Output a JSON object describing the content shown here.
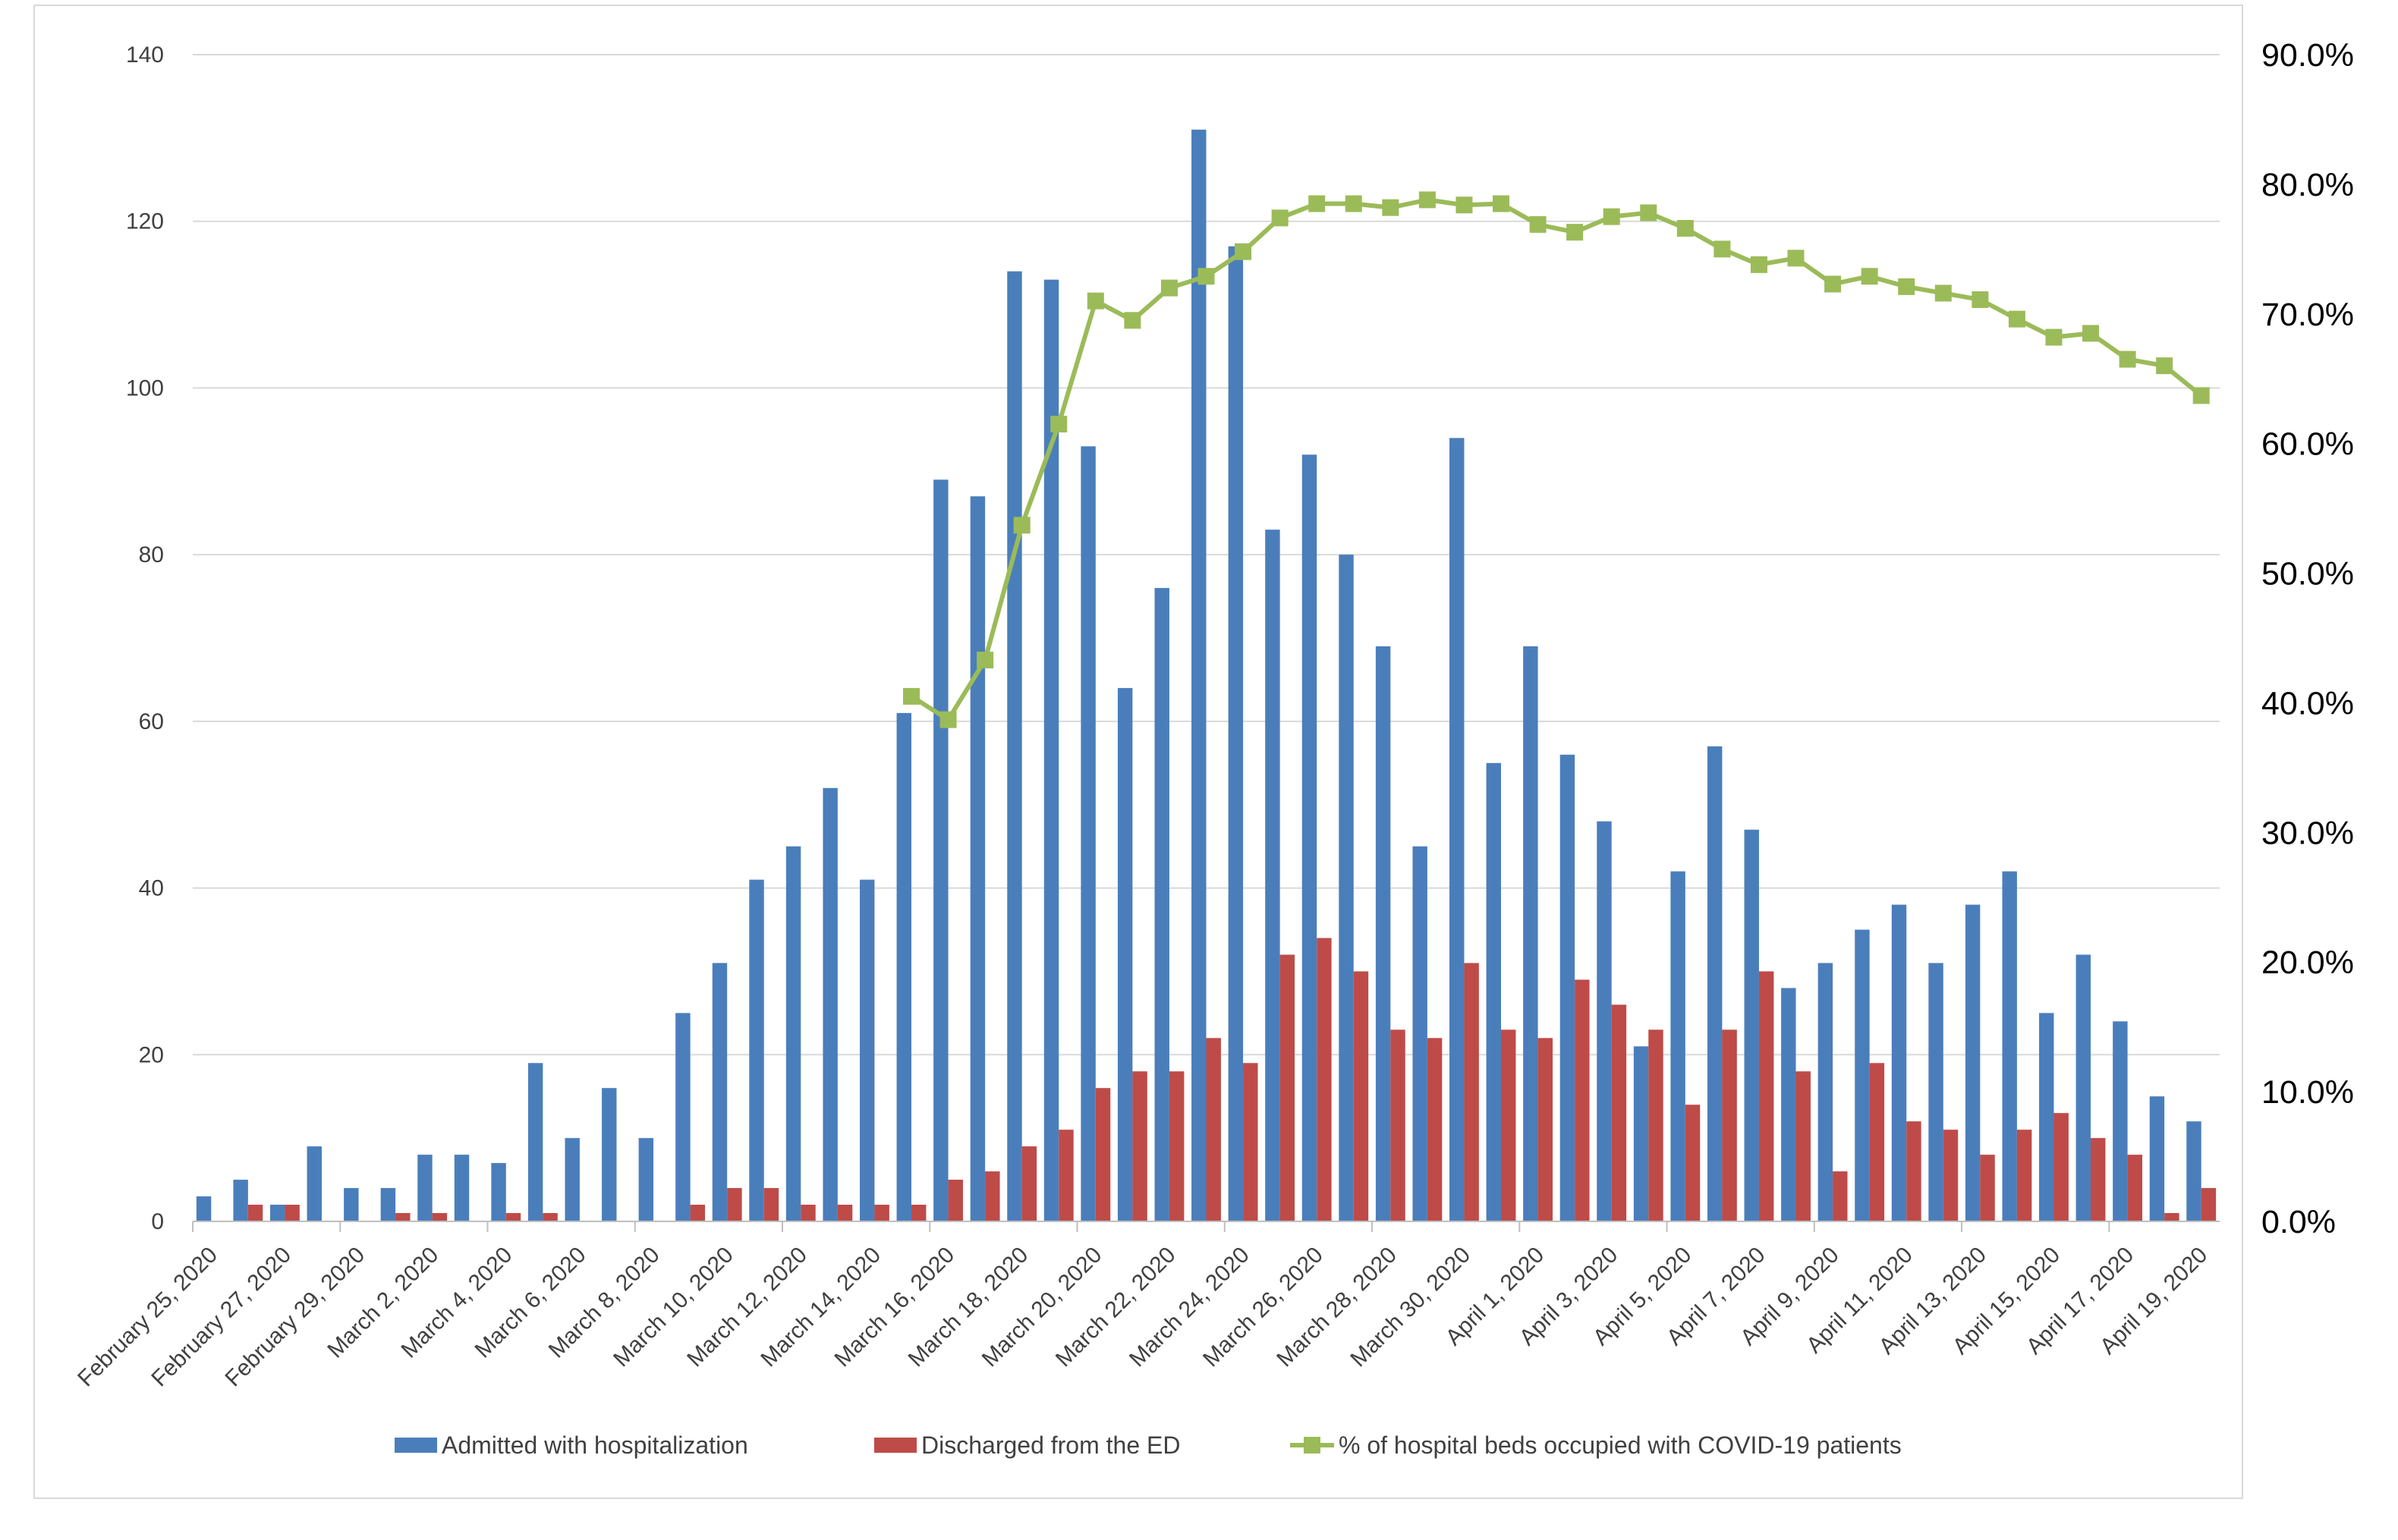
{
  "chart_data": {
    "type": "bar",
    "title": "",
    "xlabel": "",
    "ylabel": "",
    "y2label": "",
    "ylim": [
      0,
      140
    ],
    "y2lim": [
      0,
      90
    ],
    "grid": true,
    "legend": "bottom",
    "yticks": [
      "0",
      "20",
      "40",
      "60",
      "80",
      "100",
      "120",
      "140"
    ],
    "y2ticks": [
      "0.0%",
      "10.0%",
      "20.0%",
      "30.0%",
      "40.0%",
      "50.0%",
      "60.0%",
      "70.0%",
      "80.0%",
      "90.0%"
    ],
    "x_tick_labels": [
      "February 25, 2020",
      "February 27, 2020",
      "February 29, 2020",
      "March 2, 2020",
      "March 4, 2020",
      "March 6, 2020",
      "March 8, 2020",
      "March 10, 2020",
      "March 12, 2020",
      "March 14, 2020",
      "March 16, 2020",
      "March 18, 2020",
      "March 20, 2020",
      "March 22, 2020",
      "March 24, 2020",
      "March 26, 2020",
      "March 28, 2020",
      "March 30, 2020",
      "April 1, 2020",
      "April 3, 2020",
      "April 5, 2020",
      "April 7, 2020",
      "April 9, 2020",
      "April 11, 2020",
      "April 13, 2020",
      "April 15, 2020",
      "April 17, 2020",
      "April 19, 2020"
    ],
    "categories": [
      "Feb 25",
      "Feb 26",
      "Feb 27",
      "Feb 28",
      "Feb 29",
      "Mar 1",
      "Mar 2",
      "Mar 3",
      "Mar 4",
      "Mar 5",
      "Mar 6",
      "Mar 7",
      "Mar 8",
      "Mar 9",
      "Mar 10",
      "Mar 11",
      "Mar 12",
      "Mar 13",
      "Mar 14",
      "Mar 15",
      "Mar 16",
      "Mar 17",
      "Mar 18",
      "Mar 19",
      "Mar 20",
      "Mar 21",
      "Mar 22",
      "Mar 23",
      "Mar 24",
      "Mar 25",
      "Mar 26",
      "Mar 27",
      "Mar 28",
      "Mar 29",
      "Mar 30",
      "Mar 31",
      "Apr 1",
      "Apr 2",
      "Apr 3",
      "Apr 4",
      "Apr 5",
      "Apr 6",
      "Apr 7",
      "Apr 8",
      "Apr 9",
      "Apr 10",
      "Apr 11",
      "Apr 12",
      "Apr 13",
      "Apr 14",
      "Apr 15",
      "Apr 16",
      "Apr 17",
      "Apr 18",
      "Apr 19"
    ],
    "series": [
      {
        "name": "Admitted with hospitalization",
        "type": "bar",
        "axis": "left",
        "color": "#4a7ebb",
        "values": [
          3,
          5,
          2,
          9,
          4,
          4,
          8,
          8,
          7,
          19,
          10,
          16,
          10,
          25,
          31,
          41,
          45,
          52,
          41,
          61,
          89,
          87,
          114,
          113,
          93,
          64,
          76,
          131,
          117,
          83,
          92,
          80,
          69,
          45,
          94,
          55,
          69,
          56,
          48,
          21,
          42,
          57,
          47,
          28,
          31,
          35,
          38,
          31,
          38,
          42,
          25,
          32,
          24,
          15,
          12
        ]
      },
      {
        "name": "Discharged from the ED",
        "type": "bar",
        "axis": "left",
        "color": "#be4b48",
        "values": [
          0,
          2,
          2,
          0,
          0,
          1,
          1,
          0,
          1,
          1,
          0,
          0,
          0,
          2,
          4,
          4,
          2,
          2,
          2,
          2,
          5,
          6,
          9,
          11,
          16,
          18,
          18,
          22,
          19,
          32,
          34,
          30,
          23,
          22,
          31,
          23,
          22,
          29,
          26,
          23,
          14,
          23,
          30,
          18,
          6,
          19,
          12,
          11,
          8,
          11,
          13,
          10,
          8,
          1,
          4
        ]
      },
      {
        "name": "% of hospital beds occupied with COVID-19 patients",
        "type": "line",
        "axis": "right",
        "color": "#9bbb59",
        "marker": "square",
        "values": [
          null,
          null,
          null,
          null,
          null,
          null,
          null,
          null,
          null,
          null,
          null,
          null,
          null,
          null,
          null,
          null,
          null,
          null,
          null,
          40.5,
          38.7,
          43.3,
          53.7,
          61.5,
          71.0,
          69.5,
          72.0,
          72.9,
          74.8,
          77.4,
          78.5,
          78.5,
          78.2,
          78.8,
          78.4,
          78.5,
          76.9,
          76.3,
          77.5,
          77.8,
          76.6,
          75.0,
          73.8,
          74.3,
          72.3,
          72.9,
          72.1,
          71.6,
          71.1,
          69.6,
          68.2,
          68.5,
          66.5,
          66.0,
          63.7
        ]
      }
    ]
  }
}
